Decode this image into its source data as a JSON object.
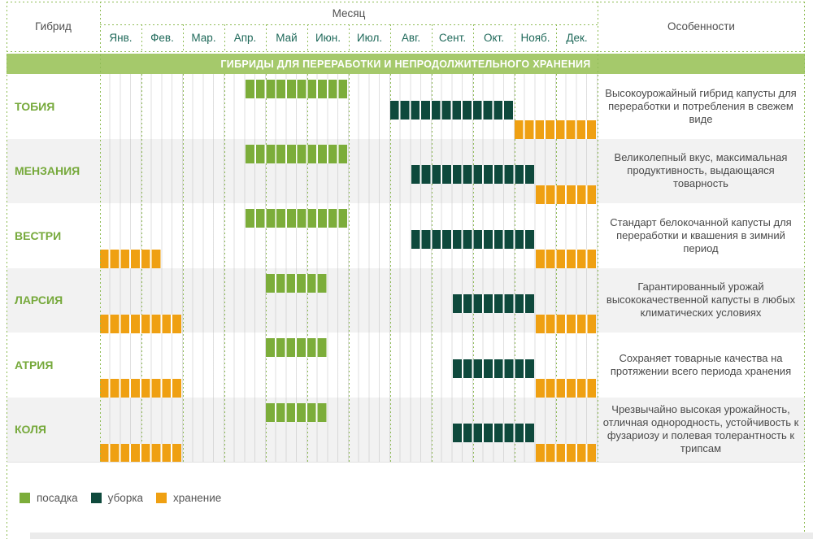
{
  "header": {
    "hybrid_col": "Гибрид",
    "month_group": "Месяц",
    "features_col": "Особенности",
    "months": [
      "Янв.",
      "Фев.",
      "Мар.",
      "Апр.",
      "Май",
      "Июн.",
      "Июл.",
      "Авг.",
      "Сент.",
      "Окт.",
      "Нояб.",
      "Дек."
    ]
  },
  "banner": "ГИБРИДЫ ДЛЯ ПЕРЕРАБОТКИ И НЕПРОДОЛЖИТЕЛЬНОГО ХРАНЕНИЯ",
  "colors": {
    "posadka": "#7cad3a",
    "uborka": "#0e493c",
    "khranenie": "#efa012",
    "banner_bg": "#a5c96b",
    "row_alt_bg": "#f2f2f2",
    "grid_green": "#8fbc55",
    "hybrid_name": "#76a93b",
    "month_label": "#1f695a",
    "header_text": "#4f4f4f"
  },
  "legend": [
    {
      "key": "posadka",
      "label": "посадка",
      "color": "#7cad3a"
    },
    {
      "key": "uborka",
      "label": "уборка",
      "color": "#0e493c"
    },
    {
      "key": "khranenie",
      "label": "хранение",
      "color": "#efa012"
    }
  ],
  "rows": [
    {
      "name": "ТОБИЯ",
      "feature": "Высокоурожайный гибрид капусты для переработки и потребления в свежем виде",
      "bars": [
        {
          "type": "posadka",
          "start": 3.5,
          "end": 6
        },
        {
          "type": "uborka",
          "start": 7,
          "end": 10
        },
        {
          "type": "khranenie",
          "start": 10,
          "end": 12
        }
      ]
    },
    {
      "name": "МЕНЗАНИЯ",
      "feature": "Великолепный вкус, максимальная продуктивность, выдающаяся товарность",
      "bars": [
        {
          "type": "posadka",
          "start": 3.5,
          "end": 6
        },
        {
          "type": "uborka",
          "start": 7.5,
          "end": 10.5
        },
        {
          "type": "khranenie",
          "start": 10.5,
          "end": 12
        }
      ]
    },
    {
      "name": "ВЕСТРИ",
      "feature": "Стандарт белокочанной капусты для переработки и квашения в зимний период",
      "bars": [
        {
          "type": "posadka",
          "start": 3.5,
          "end": 6
        },
        {
          "type": "uborka",
          "start": 7.5,
          "end": 10.5
        },
        {
          "type": "khranenie",
          "start": 0,
          "end": 1.5
        },
        {
          "type": "khranenie",
          "start": 10.5,
          "end": 12
        }
      ]
    },
    {
      "name": "ЛАРСИЯ",
      "feature": "Гарантированный урожай высококачественной капусты в любых климатических условиях",
      "bars": [
        {
          "type": "posadka",
          "start": 4,
          "end": 5.5
        },
        {
          "type": "uborka",
          "start": 8.5,
          "end": 10.5
        },
        {
          "type": "khranenie",
          "start": 0,
          "end": 2
        },
        {
          "type": "khranenie",
          "start": 10.5,
          "end": 12
        }
      ]
    },
    {
      "name": "АТРИЯ",
      "feature": "Сохраняет товарные качества на протяжении всего периода хранения",
      "bars": [
        {
          "type": "posadka",
          "start": 4,
          "end": 5.5
        },
        {
          "type": "uborka",
          "start": 8.5,
          "end": 10.5
        },
        {
          "type": "khranenie",
          "start": 0,
          "end": 2
        },
        {
          "type": "khranenie",
          "start": 10.5,
          "end": 12
        }
      ]
    },
    {
      "name": "КОЛЯ",
      "feature": "Чрезвычайно высокая урожайность, отличная однородность, устойчивость к фузариозу и полевая толерантность к трипсам",
      "bars": [
        {
          "type": "posadka",
          "start": 4,
          "end": 5.5
        },
        {
          "type": "uborka",
          "start": 8.5,
          "end": 10.5
        },
        {
          "type": "khranenie",
          "start": 0,
          "end": 2
        },
        {
          "type": "khranenie",
          "start": 10.5,
          "end": 12
        }
      ]
    }
  ],
  "chart_data": {
    "type": "bar",
    "subtype": "gantt-timeline",
    "title": "ГИБРИДЫ ДЛЯ ПЕРЕРАБОТКИ И НЕПРОДОЛЖИТЕЛЬНОГО ХРАНЕНИЯ",
    "xlabel": "Месяц",
    "x_categories": [
      "Янв.",
      "Фев.",
      "Мар.",
      "Апр.",
      "Май",
      "Июн.",
      "Июл.",
      "Авг.",
      "Сент.",
      "Окт.",
      "Нояб.",
      "Дек."
    ],
    "x_range_month_units": [
      0,
      12
    ],
    "grid": "dotted, weekly subdivisions (4 per month)",
    "legend_position": "bottom-left",
    "categories": [
      "ТОБИЯ",
      "МЕНЗАНИЯ",
      "ВЕСТРИ",
      "ЛАРСИЯ",
      "АТРИЯ",
      "КОЛЯ"
    ],
    "series": [
      {
        "name": "посадка",
        "color": "#7cad3a",
        "ranges": {
          "ТОБИЯ": [
            [
              3.5,
              6
            ]
          ],
          "МЕНЗАНИЯ": [
            [
              3.5,
              6
            ]
          ],
          "ВЕСТРИ": [
            [
              3.5,
              6
            ]
          ],
          "ЛАРСИЯ": [
            [
              4,
              5.5
            ]
          ],
          "АТРИЯ": [
            [
              4,
              5.5
            ]
          ],
          "КОЛЯ": [
            [
              4,
              5.5
            ]
          ]
        },
        "readable": {
          "ТОБИЯ": "сер. апреля – конец июня",
          "МЕНЗАНИЯ": "сер. апреля – конец июня",
          "ВЕСТРИ": "сер. апреля – конец июня",
          "ЛАРСИЯ": "май – сер. июня",
          "АТРИЯ": "май – сер. июня",
          "КОЛЯ": "май – сер. июня"
        }
      },
      {
        "name": "уборка",
        "color": "#0e493c",
        "ranges": {
          "ТОБИЯ": [
            [
              7,
              10
            ]
          ],
          "МЕНЗАНИЯ": [
            [
              7.5,
              10.5
            ]
          ],
          "ВЕСТРИ": [
            [
              7.5,
              10.5
            ]
          ],
          "ЛАРСИЯ": [
            [
              8.5,
              10.5
            ]
          ],
          "АТРИЯ": [
            [
              8.5,
              10.5
            ]
          ],
          "КОЛЯ": [
            [
              8.5,
              10.5
            ]
          ]
        },
        "readable": {
          "ТОБИЯ": "август – октябрь",
          "МЕНЗАНИЯ": "сер. августа – сер. ноября",
          "ВЕСТРИ": "сер. августа – сер. ноября",
          "ЛАРСИЯ": "сер. сентября – сер. ноября",
          "АТРИЯ": "сер. сентября – сер. ноября",
          "КОЛЯ": "сер. сентября – сер. ноября"
        }
      },
      {
        "name": "хранение",
        "color": "#efa012",
        "ranges": {
          "ТОБИЯ": [
            [
              10,
              12
            ]
          ],
          "МЕНЗАНИЯ": [
            [
              10.5,
              12
            ]
          ],
          "ВЕСТРИ": [
            [
              0,
              1.5
            ],
            [
              10.5,
              12
            ]
          ],
          "ЛАРСИЯ": [
            [
              0,
              2
            ],
            [
              10.5,
              12
            ]
          ],
          "АТРИЯ": [
            [
              0,
              2
            ],
            [
              10.5,
              12
            ]
          ],
          "КОЛЯ": [
            [
              0,
              2
            ],
            [
              10.5,
              12
            ]
          ]
        },
        "readable": {
          "ТОБИЯ": "ноябрь – декабрь",
          "МЕНЗАНИЯ": "сер. ноября – декабрь",
          "ВЕСТРИ": "янв.–сер.февр. и сер.ноября–дек.",
          "ЛАРСИЯ": "янв.–февр. и сер.ноября–дек.",
          "АТРИЯ": "янв.–февр. и сер.ноября–дек.",
          "КОЛЯ": "янв.–февр. и сер.ноября–дек."
        }
      }
    ],
    "annotations": {
      "ТОБИЯ": "Высокоурожайный гибрид капусты для переработки и потребления в свежем виде",
      "МЕНЗАНИЯ": "Великолепный вкус, максимальная продуктивность, выдающаяся товарность",
      "ВЕСТРИ": "Стандарт белокочанной капусты для переработки и квашения в зимний период",
      "ЛАРСИЯ": "Гарантированный урожай высококачественной капусты в любых климатических условиях",
      "АТРИЯ": "Сохраняет товарные качества на протяжении всего периода хранения",
      "КОЛЯ": "Чрезвычайно высокая урожайность, отличная однородность, устойчивость к фузариозу и полевая толерантность к трипсам"
    }
  }
}
